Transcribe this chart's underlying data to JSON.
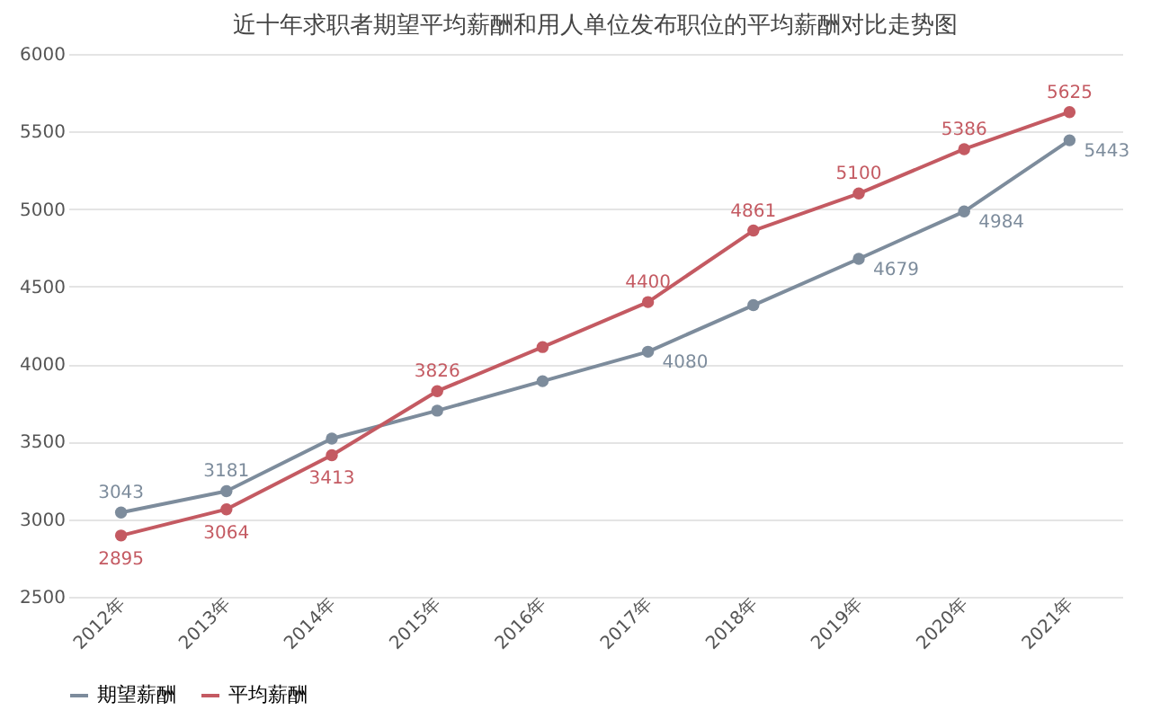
{
  "chart_data": {
    "type": "line",
    "title": "近十年求职者期望平均薪酬和用人单位发布职位的平均薪酬对比走势图",
    "categories": [
      "2012年",
      "2013年",
      "2014年",
      "2015年",
      "2016年",
      "2017年",
      "2018年",
      "2019年",
      "2020年",
      "2021年"
    ],
    "series": [
      {
        "name": "期望薪酬",
        "color": "#7d8c9c",
        "values": [
          3043,
          3181,
          3520,
          3700,
          3890,
          4080,
          4380,
          4679,
          4984,
          5443
        ],
        "value_labels": [
          "3043",
          "3181",
          null,
          null,
          null,
          "4080",
          null,
          "4679",
          "4984",
          "5443"
        ]
      },
      {
        "name": "平均薪酬",
        "color": "#c45a62",
        "values": [
          2895,
          3064,
          3413,
          3826,
          4110,
          4400,
          4861,
          5100,
          5386,
          5625
        ],
        "value_labels": [
          "2895",
          "3064",
          "3413",
          "3826",
          null,
          "4400",
          "4861",
          "5100",
          "5386",
          "5625"
        ]
      }
    ],
    "ylim": [
      2500,
      6000
    ],
    "yticks": [
      2500,
      3000,
      3500,
      4000,
      4500,
      5000,
      5500,
      6000
    ],
    "grid": "y",
    "legend": "bottom",
    "marker": "circle",
    "line_style": "solid"
  }
}
